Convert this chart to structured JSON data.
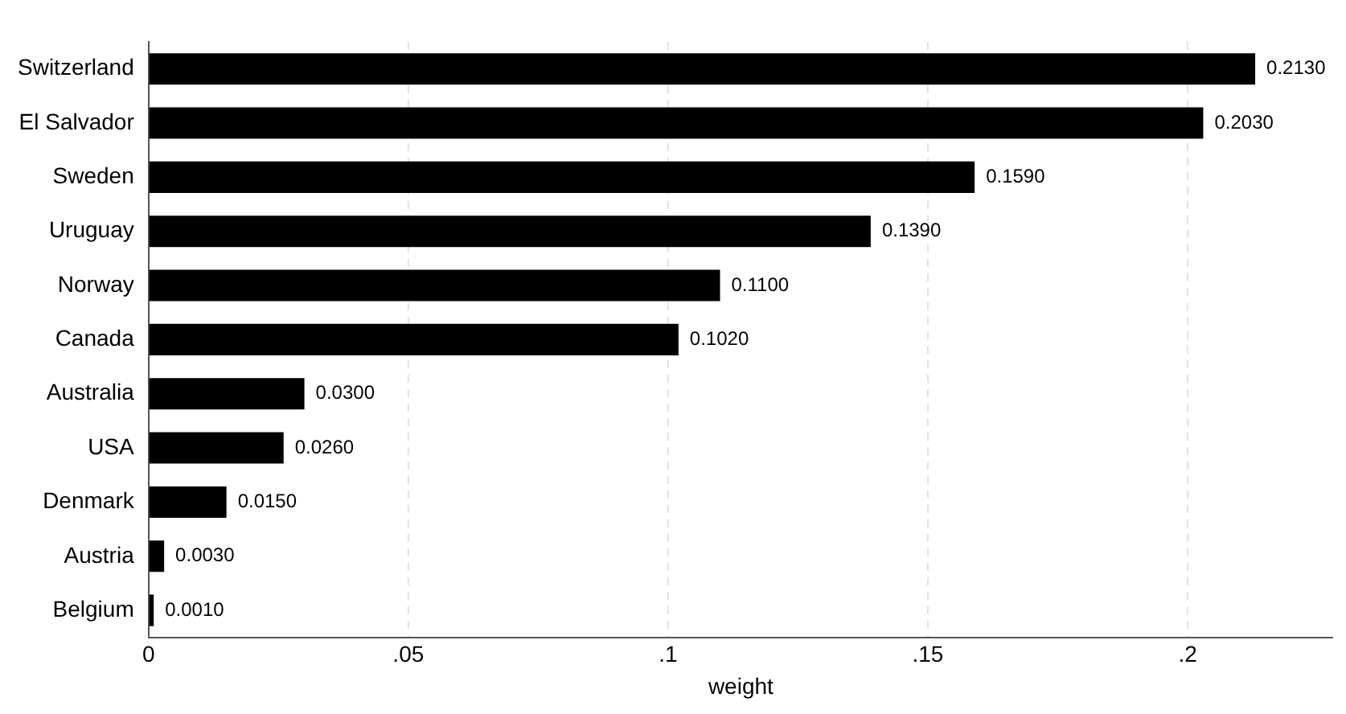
{
  "chart_data": {
    "type": "bar",
    "orientation": "horizontal",
    "xlabel": "weight",
    "categories": [
      "Switzerland",
      "El Salvador",
      "Sweden",
      "Uruguay",
      "Norway",
      "Canada",
      "Australia",
      "USA",
      "Denmark",
      "Austria",
      "Belgium"
    ],
    "values": [
      0.213,
      0.203,
      0.159,
      0.139,
      0.11,
      0.102,
      0.03,
      0.026,
      0.015,
      0.003,
      0.001
    ],
    "value_labels": [
      "0.2130",
      "0.2030",
      "0.1590",
      "0.1390",
      "0.1100",
      "0.1020",
      "0.0300",
      "0.0260",
      "0.0150",
      "0.0030",
      "0.0010"
    ],
    "color": "#000000",
    "xlim": [
      0,
      0.228
    ],
    "xticks": [
      0,
      {
        "value": 0.05,
        "label": ".05"
      },
      {
        "value": 0.1,
        "label": ".1"
      },
      {
        "value": 0.15,
        "label": ".15"
      },
      {
        "value": 0.2,
        "label": ".2"
      }
    ],
    "grid": "x"
  }
}
